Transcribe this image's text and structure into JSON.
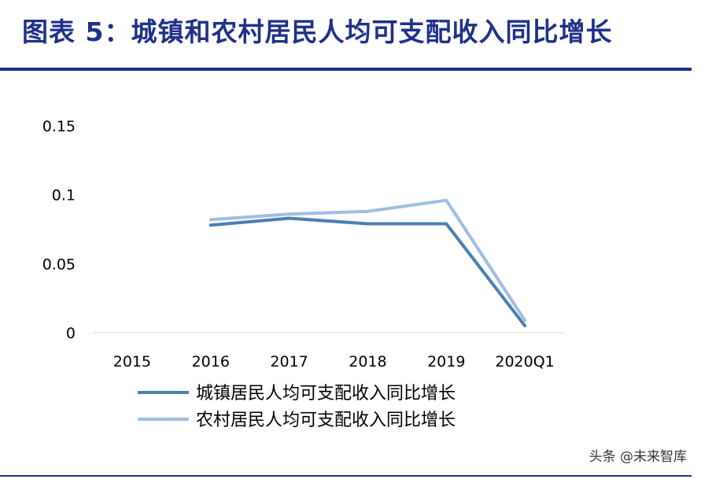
{
  "title": "图表 5：城镇和农村居民人均可支配收入同比增长",
  "watermark": "头条 @未来智库",
  "chart_data": {
    "type": "line",
    "categories": [
      "2015",
      "2016",
      "2017",
      "2018",
      "2019",
      "2020Q1"
    ],
    "ylim": [
      0,
      0.15
    ],
    "yticks": [
      "0",
      "0.05",
      "0.1",
      "0.15"
    ],
    "grid": false,
    "legend_position": "bottom",
    "series": [
      {
        "name": "城镇居民人均可支配收入同比增长",
        "color": "#4a7fb0",
        "values": [
          null,
          0.078,
          0.083,
          0.079,
          0.079,
          0.005
        ]
      },
      {
        "name": "农村居民人均可支配收入同比增长",
        "color": "#9fbde0",
        "values": [
          null,
          0.082,
          0.086,
          0.088,
          0.096,
          0.009
        ]
      }
    ]
  }
}
